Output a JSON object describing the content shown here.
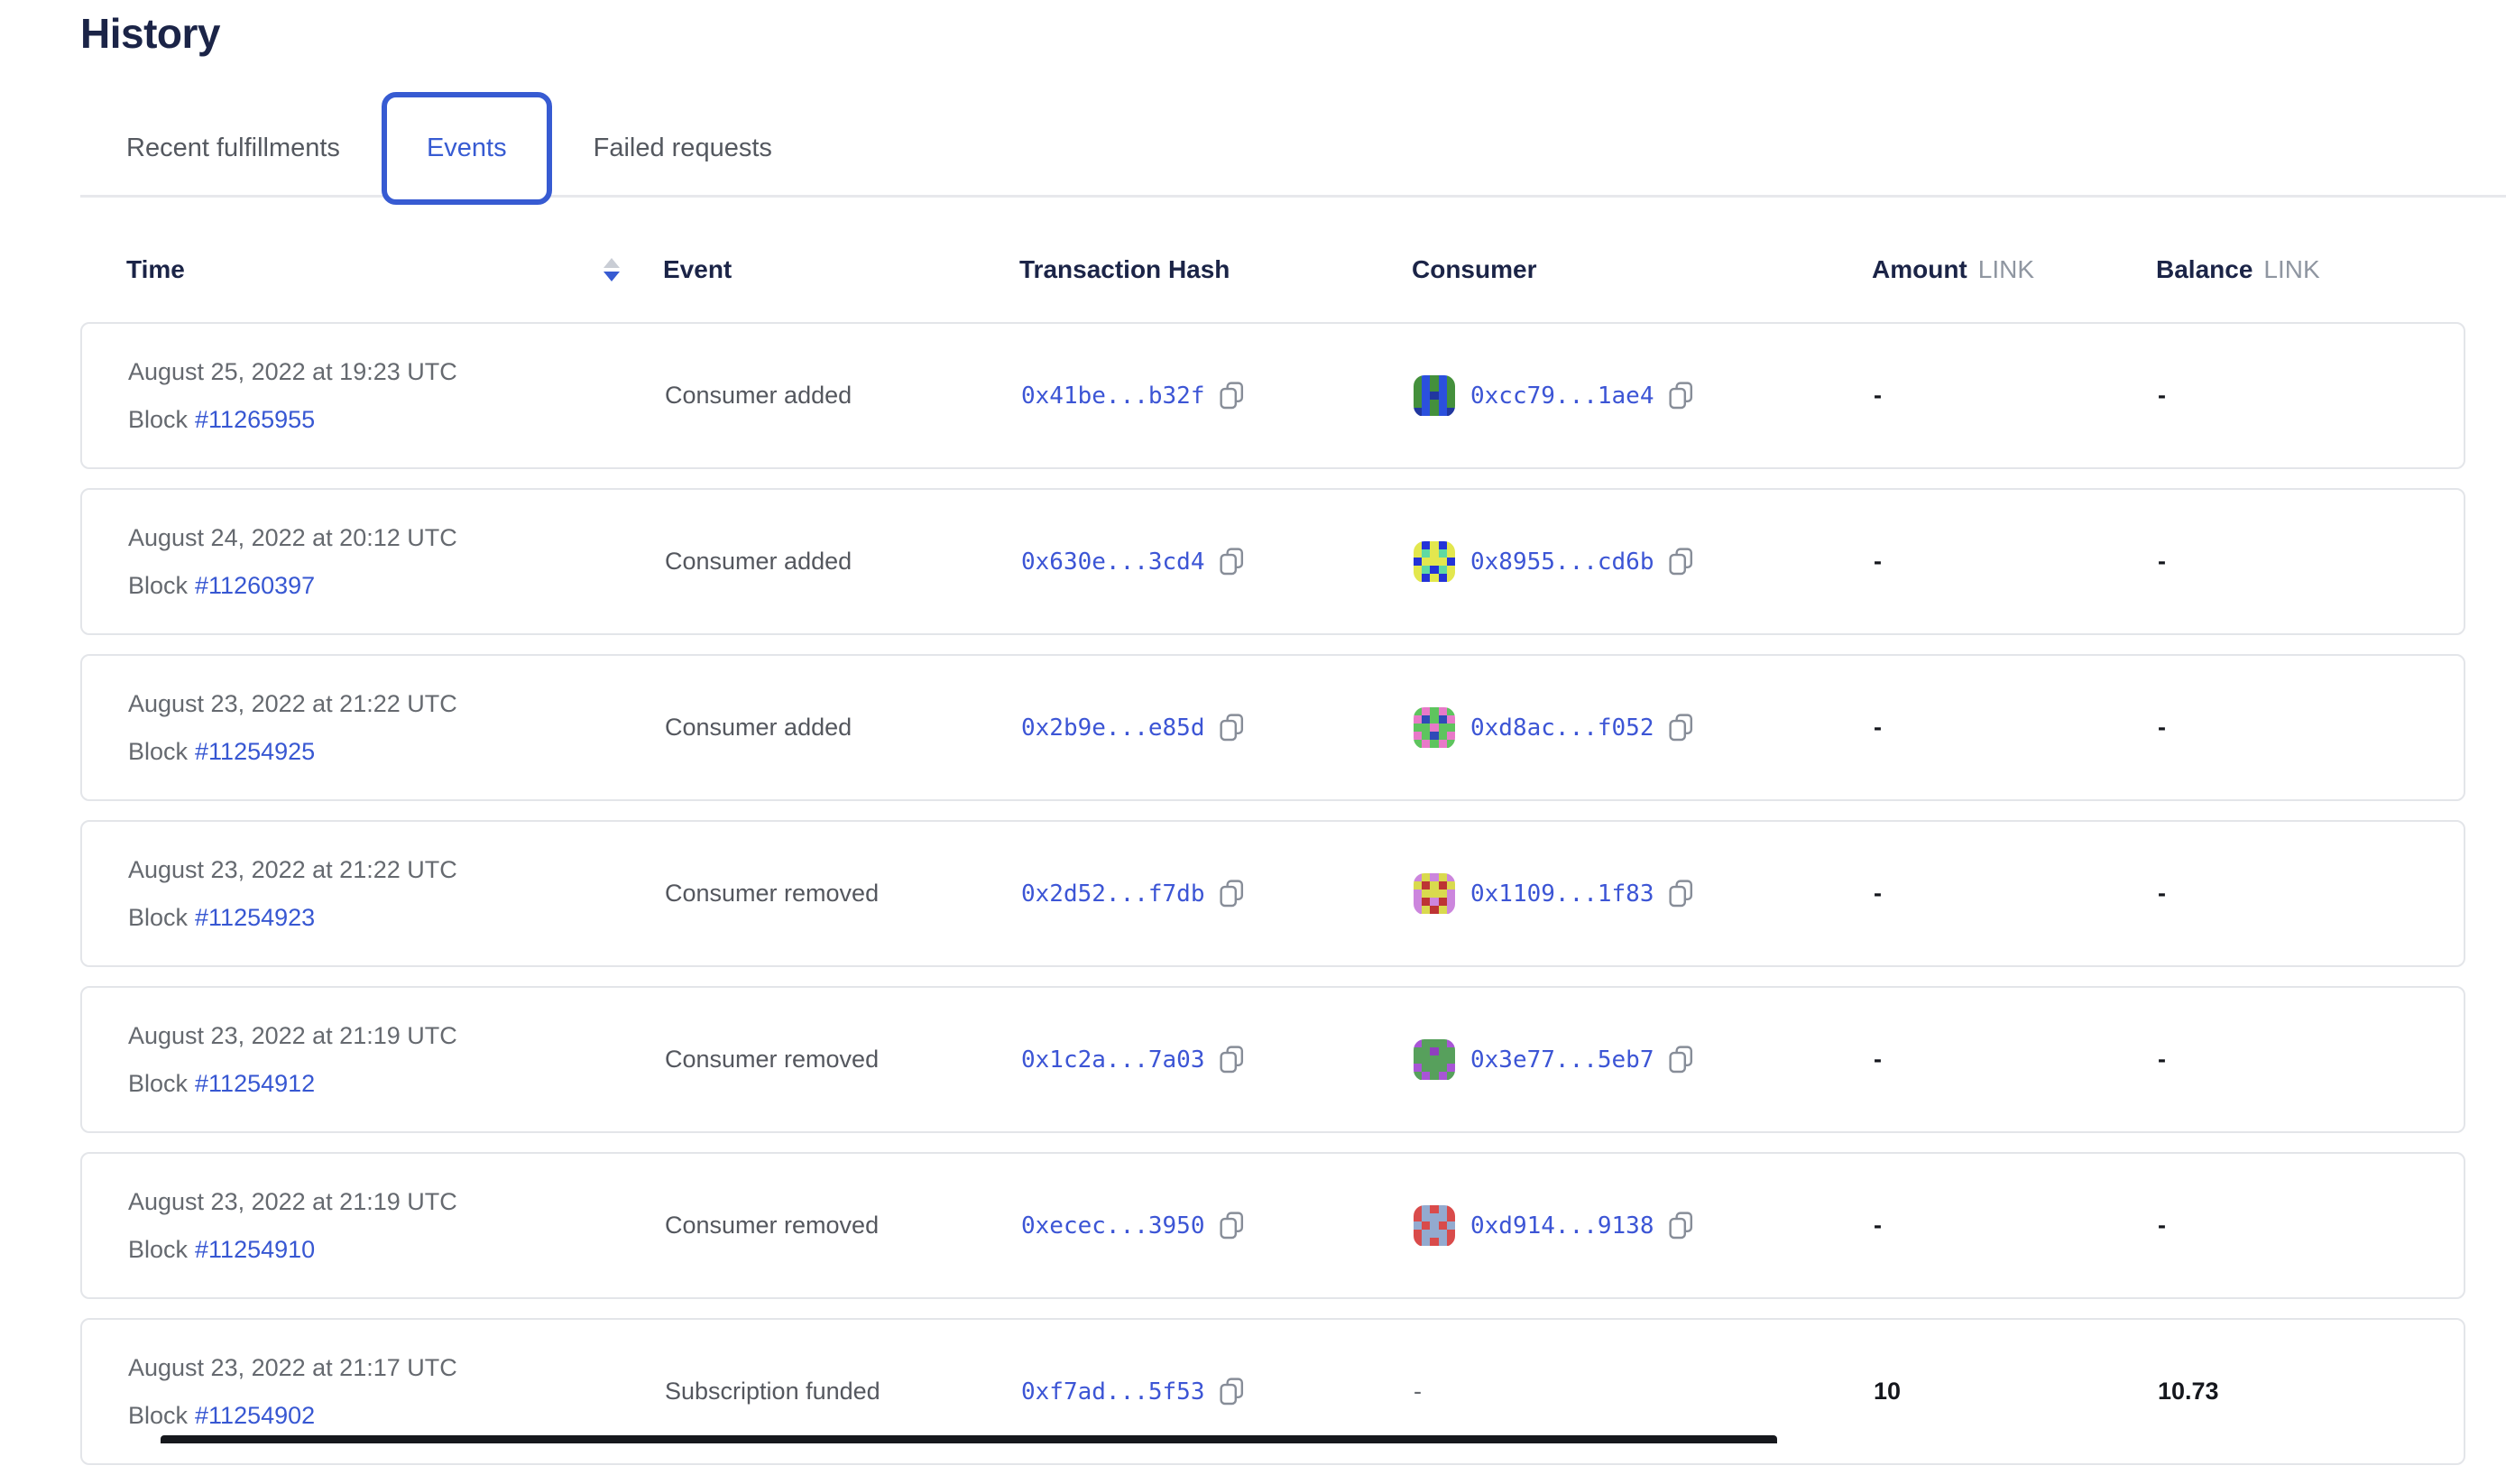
{
  "page": {
    "title": "History"
  },
  "tabs": [
    {
      "label": "Recent fulfillments",
      "active": false
    },
    {
      "label": "Events",
      "active": true
    },
    {
      "label": "Failed requests",
      "active": false
    }
  ],
  "table": {
    "headers": {
      "time": "Time",
      "event": "Event",
      "transaction_hash": "Transaction Hash",
      "consumer": "Consumer",
      "amount": "Amount",
      "amount_unit": "LINK",
      "balance": "Balance",
      "balance_unit": "LINK"
    },
    "sort": {
      "column": "Time",
      "direction": "descending"
    },
    "block_label": "Block",
    "rows": [
      {
        "date": "August 25, 2022 at 19:23 UTC",
        "block": "#11265955",
        "event": "Consumer added",
        "tx_hash": "0x41be...b32f",
        "consumer": "0xcc79...1ae4",
        "amount": "-",
        "balance": "-",
        "identicon": {
          "colors": [
            "#44903c",
            "#2b50dd",
            "#21379f"
          ],
          "pattern": [
            [
              0,
              1,
              0,
              1,
              0
            ],
            [
              0,
              1,
              0,
              1,
              0
            ],
            [
              0,
              1,
              2,
              1,
              0
            ],
            [
              0,
              1,
              0,
              1,
              0
            ],
            [
              2,
              1,
              0,
              1,
              2
            ]
          ]
        }
      },
      {
        "date": "August 24, 2022 at 20:12 UTC",
        "block": "#11260397",
        "event": "Consumer added",
        "tx_hash": "0x630e...3cd4",
        "consumer": "0x8955...cd6b",
        "amount": "-",
        "balance": "-",
        "identicon": {
          "colors": [
            "#2433d8",
            "#e3e74e",
            "#5fd9a2"
          ],
          "pattern": [
            [
              1,
              0,
              1,
              0,
              1
            ],
            [
              1,
              2,
              1,
              2,
              1
            ],
            [
              0,
              1,
              1,
              1,
              0
            ],
            [
              1,
              2,
              0,
              2,
              1
            ],
            [
              1,
              0,
              1,
              0,
              1
            ]
          ]
        }
      },
      {
        "date": "August 23, 2022 at 21:22 UTC",
        "block": "#11254925",
        "event": "Consumer added",
        "tx_hash": "0x2b9e...e85d",
        "consumer": "0xd8ac...f052",
        "amount": "-",
        "balance": "-",
        "identicon": {
          "colors": [
            "#5ec45e",
            "#e879c8",
            "#2f4ab8"
          ],
          "pattern": [
            [
              0,
              1,
              0,
              1,
              0
            ],
            [
              1,
              2,
              0,
              2,
              1
            ],
            [
              0,
              0,
              1,
              0,
              0
            ],
            [
              1,
              0,
              2,
              0,
              1
            ],
            [
              0,
              1,
              0,
              1,
              0
            ]
          ]
        }
      },
      {
        "date": "August 23, 2022 at 21:22 UTC",
        "block": "#11254923",
        "event": "Consumer removed",
        "tx_hash": "0x2d52...f7db",
        "consumer": "0x1109...1f83",
        "amount": "-",
        "balance": "-",
        "identicon": {
          "colors": [
            "#cc86dd",
            "#d9da4e",
            "#bd3434"
          ],
          "pattern": [
            [
              0,
              1,
              0,
              1,
              0
            ],
            [
              1,
              2,
              1,
              2,
              1
            ],
            [
              0,
              1,
              1,
              1,
              0
            ],
            [
              0,
              2,
              0,
              2,
              0
            ],
            [
              0,
              1,
              2,
              1,
              0
            ]
          ]
        }
      },
      {
        "date": "August 23, 2022 at 21:19 UTC",
        "block": "#11254912",
        "event": "Consumer removed",
        "tx_hash": "0x1c2a...7a03",
        "consumer": "0x3e77...5eb7",
        "amount": "-",
        "balance": "-",
        "identicon": {
          "colors": [
            "#57a05c",
            "#a855d6",
            "#8f3fbe"
          ],
          "pattern": [
            [
              1,
              0,
              0,
              0,
              1
            ],
            [
              0,
              0,
              2,
              0,
              0
            ],
            [
              0,
              0,
              0,
              0,
              0
            ],
            [
              1,
              0,
              0,
              0,
              1
            ],
            [
              0,
              1,
              0,
              1,
              0
            ]
          ]
        }
      },
      {
        "date": "August 23, 2022 at 21:19 UTC",
        "block": "#11254910",
        "event": "Consumer removed",
        "tx_hash": "0xecec...3950",
        "consumer": "0xd914...9138",
        "amount": "-",
        "balance": "-",
        "identicon": {
          "colors": [
            "#d94b4b",
            "#93aacf",
            "#c13b3b"
          ],
          "pattern": [
            [
              0,
              1,
              0,
              1,
              0
            ],
            [
              0,
              1,
              1,
              1,
              0
            ],
            [
              1,
              0,
              1,
              0,
              1
            ],
            [
              0,
              1,
              1,
              1,
              0
            ],
            [
              0,
              1,
              0,
              1,
              0
            ]
          ]
        }
      },
      {
        "date": "August 23, 2022 at 21:17 UTC",
        "block": "#11254902",
        "event": "Subscription funded",
        "tx_hash": "0xf7ad...5f53",
        "consumer": "-",
        "amount": "10",
        "balance": "10.73",
        "identicon": null
      }
    ]
  },
  "colors": {
    "accent_blue": "#375bd2",
    "heading_navy": "#1b2447",
    "link_blue": "#3757d2",
    "text_gray": "#65696f",
    "muted_gray": "#8f96a1",
    "card_border": "#e3e5e9"
  }
}
